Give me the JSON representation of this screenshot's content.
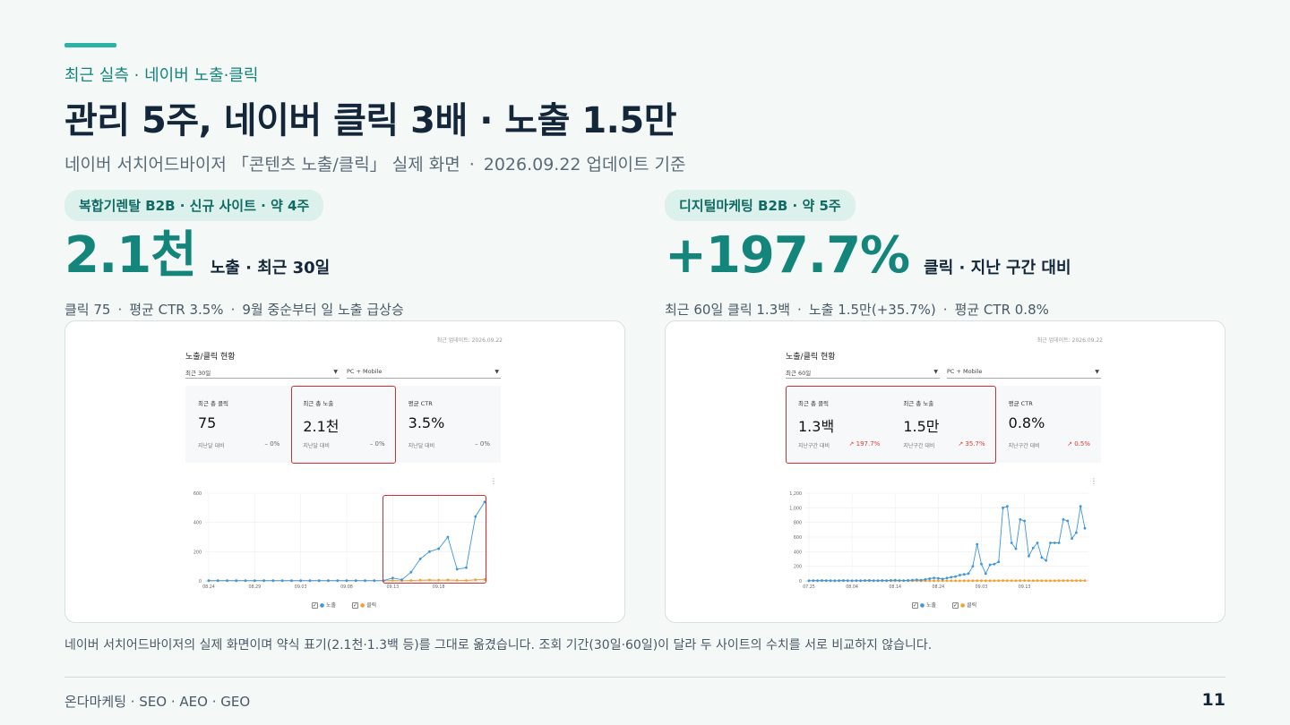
{
  "header": {
    "eyebrow": "최근 실측 · 네이버 노출·클릭",
    "title": "관리 5주, 네이버 클릭 3배 · 노출 1.5만",
    "subtitle_source": "네이버 서치어드바이저 「콘텐츠 노출/클릭」 실제 화면",
    "subtitle_sep": "·",
    "subtitle_date": "2026.09.22 업데이트 기준"
  },
  "left": {
    "tag": "복합기렌탈 B2B · 신규 사이트 · 약 4주",
    "kpi": "2.1천",
    "kpi_label": "노출 · 최근 30일",
    "metrics": [
      "클릭 75",
      "평균 CTR 3.5%",
      "9월 중순부터 일 노출 급상승"
    ],
    "shot": {
      "updated": "최근 업데이트: 2026.09.22",
      "panel_title": "노출/클릭 현황",
      "period": "최근 30일",
      "device": "PC + Mobile",
      "stats": [
        {
          "label": "최근 총 클릭",
          "value": "75",
          "prev": "지난달 대비",
          "change": "– 0%"
        },
        {
          "label": "최근 총 노출",
          "value": "2.1천",
          "prev": "지난달 대비",
          "change": "– 0%"
        },
        {
          "label": "평균 CTR",
          "value": "3.5%",
          "prev": "지난달 대비",
          "change": "– 0%"
        }
      ],
      "legend": [
        "노출",
        "클릭"
      ]
    }
  },
  "right": {
    "tag": "디지털마케팅 B2B · 약 5주",
    "kpi": "+197.7%",
    "kpi_label": "클릭 · 지난 구간 대비",
    "metrics": [
      "최근 60일 클릭 1.3백",
      "노출 1.5만(+35.7%)",
      "평균 CTR 0.8%"
    ],
    "shot": {
      "updated": "최근 업데이트: 2026.09.22",
      "panel_title": "노출/클릭 현황",
      "period": "최근 60일",
      "device": "PC + Mobile",
      "stats": [
        {
          "label": "최근 총 클릭",
          "value": "1.3백",
          "prev": "지난구간 대비",
          "change": "↗ 197.7%"
        },
        {
          "label": "최근 총 노출",
          "value": "1.5만",
          "prev": "지난구간 대비",
          "change": "↗ 35.7%"
        },
        {
          "label": "평균 CTR",
          "value": "0.8%",
          "prev": "지난구간 대비",
          "change": "↗ 0.5%"
        }
      ],
      "legend": [
        "노출",
        "클릭"
      ]
    }
  },
  "chart_data": [
    {
      "type": "line",
      "x_ticks": [
        "08.24",
        "08.29",
        "09.03",
        "09.08",
        "09.13",
        "09.18"
      ],
      "y_ticks": [
        "0",
        "200",
        "400",
        "600"
      ],
      "ylim": [
        0,
        600
      ],
      "series": [
        {
          "name": "노출",
          "color": "#3a96dd",
          "values": [
            2,
            2,
            2,
            2,
            2,
            2,
            2,
            2,
            2,
            2,
            2,
            2,
            2,
            2,
            2,
            2,
            2,
            2,
            2,
            2,
            20,
            8,
            60,
            150,
            200,
            220,
            300,
            80,
            90,
            440,
            540
          ]
        },
        {
          "name": "클릭",
          "color": "#f0a030",
          "values": [
            1,
            1,
            1,
            1,
            1,
            1,
            1,
            1,
            1,
            1,
            1,
            1,
            1,
            1,
            1,
            1,
            1,
            1,
            1,
            1,
            3,
            1,
            3,
            5,
            6,
            5,
            7,
            4,
            3,
            8,
            10
          ]
        }
      ]
    },
    {
      "type": "line",
      "x_ticks": [
        "07.25",
        "08.04",
        "08.14",
        "08.24",
        "09.03",
        "09.13"
      ],
      "y_ticks": [
        "0",
        "200",
        "400",
        "600",
        "800",
        "1,000",
        "1,200"
      ],
      "ylim": [
        0,
        1200
      ],
      "series": [
        {
          "name": "노출",
          "color": "#3a96dd",
          "values": [
            3,
            5,
            4,
            6,
            5,
            4,
            3,
            5,
            6,
            4,
            3,
            5,
            4,
            6,
            8,
            5,
            4,
            6,
            5,
            8,
            10,
            6,
            5,
            8,
            10,
            15,
            10,
            20,
            30,
            40,
            35,
            25,
            40,
            50,
            60,
            80,
            90,
            100,
            200,
            500,
            230,
            100,
            220,
            230,
            260,
            1000,
            1020,
            520,
            440,
            840,
            820,
            340,
            450,
            520,
            320,
            280,
            520,
            520,
            520,
            840,
            820,
            580,
            660,
            1020,
            720
          ]
        },
        {
          "name": "클릭",
          "color": "#f0a030",
          "values": [
            1,
            1,
            1,
            1,
            1,
            1,
            1,
            1,
            1,
            1,
            1,
            1,
            1,
            1,
            1,
            1,
            1,
            1,
            1,
            1,
            1,
            1,
            1,
            1,
            1,
            1,
            1,
            1,
            1,
            1,
            1,
            1,
            1,
            1,
            1,
            1,
            2,
            2,
            2,
            3,
            2,
            2,
            2,
            3,
            3,
            4,
            4,
            3,
            3,
            4,
            4,
            3,
            3,
            4,
            3,
            3,
            3,
            3,
            4,
            4,
            4,
            4,
            4,
            5,
            4
          ]
        }
      ]
    }
  ],
  "footer": {
    "note": "네이버 서치어드바이저의 실제 화면이며 약식 표기(2.1천·1.3백 등)를 그대로 옮겼습니다. 조회 기간(30일·60일)이 달라 두 사이트의 수치를 서로 비교하지 않습니다.",
    "brand": "온다마케팅 · SEO · AEO · GEO",
    "page": "11"
  }
}
